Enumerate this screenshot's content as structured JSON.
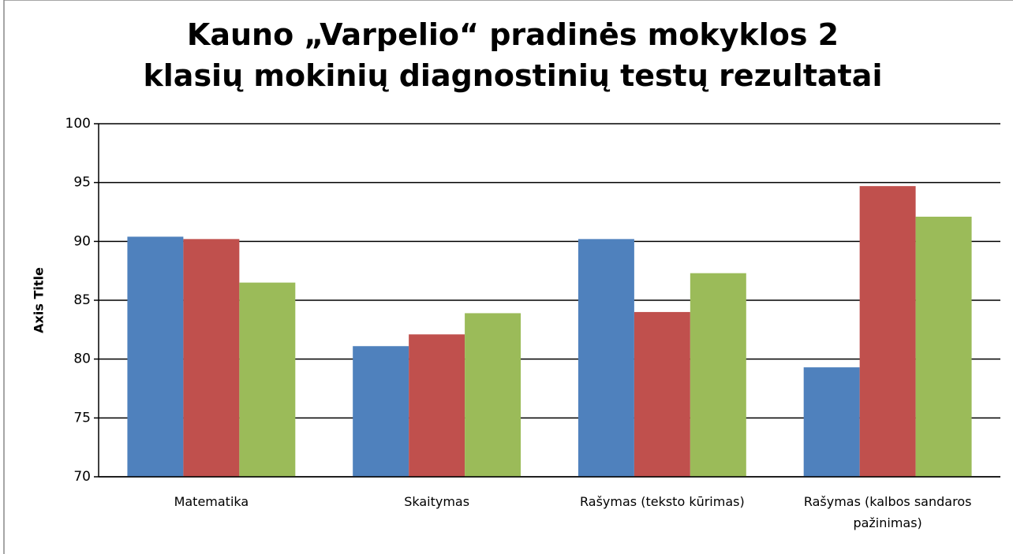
{
  "chart_data": {
    "type": "bar",
    "title": "Kauno „Varpelio“ pradinės mokyklos 2 klasių mokinių diagnostinių testų rezultatai",
    "y_label": "Axis Title",
    "categories": [
      "Matematika",
      "Skaitymas",
      "Rašymas (teksto kūrimas)",
      "Rašymas (kalbos sandaros pažinimas)"
    ],
    "series": [
      {
        "color": "#4f81bd",
        "values": [
          90.4,
          81.1,
          90.2,
          79.3
        ]
      },
      {
        "color": "#c0504d",
        "values": [
          90.2,
          82.1,
          84.0,
          94.7
        ]
      },
      {
        "color": "#9bbb59",
        "values": [
          86.5,
          83.9,
          87.3,
          92.1
        ]
      }
    ],
    "ylim": [
      70,
      100
    ],
    "yticks": [
      70,
      75,
      80,
      85,
      90,
      95,
      100
    ],
    "grid": true
  }
}
